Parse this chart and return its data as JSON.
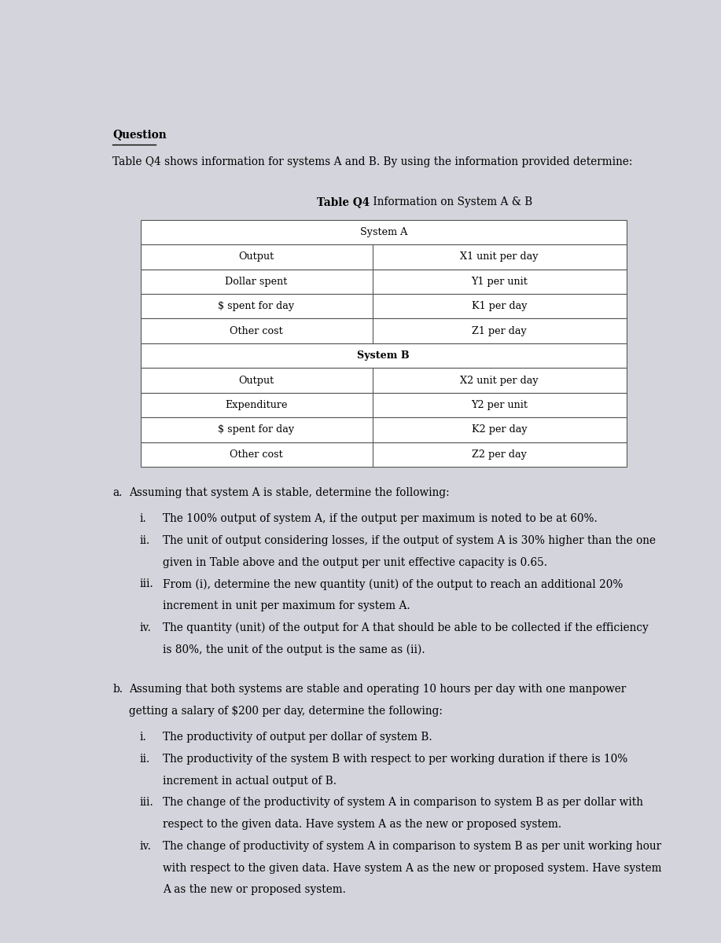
{
  "background_color": "#d4d4dc",
  "title_question": "Question",
  "intro_text": "Table Q4 shows information for systems A and B. By using the information provided determine:",
  "table_title_bold": "Table Q4",
  "table_title_rest": " Information on System A & B",
  "table_system_a_header": "System A",
  "table_system_b_header": "System B",
  "table_rows_a": [
    [
      "Output",
      "X1 unit per day"
    ],
    [
      "Dollar spent",
      "Y1 per unit"
    ],
    [
      "$ spent for day",
      "K1 per day"
    ],
    [
      "Other cost",
      "Z1 per day"
    ]
  ],
  "table_rows_b": [
    [
      "Output",
      "X2 unit per day"
    ],
    [
      "Expenditure",
      "Y2 per unit"
    ],
    [
      "$ spent for day",
      "K2 per day"
    ],
    [
      "Other cost",
      "Z2 per day"
    ]
  ],
  "section_a_label": "a.",
  "section_a_header": "Assuming that system A is stable, determine the following:",
  "section_a_items": [
    [
      "i.",
      "The 100% output of system A, if the output per maximum is noted to be at 60%."
    ],
    [
      "ii.",
      "The unit of output considering losses, if the output of system A is 30% higher than the one\ngiven in Table above and the output per unit effective capacity is 0.65."
    ],
    [
      "iii.",
      "From (i), determine the new quantity (unit) of the output to reach an additional 20%\nincrement in unit per maximum for system A."
    ],
    [
      "iv.",
      "The quantity (unit) of the output for A that should be able to be collected if the efficiency\nis 80%, the unit of the output is the same as (ii)."
    ]
  ],
  "section_b_label": "b.",
  "section_b_line1": "Assuming that both systems are stable and operating 10 hours per day with one manpower",
  "section_b_line2": "getting a salary of $200 per day, determine the following:",
  "section_b_items": [
    [
      "i.",
      "The productivity of output per dollar of system B."
    ],
    [
      "ii.",
      "The productivity of the system B with respect to per working duration if there is 10%\nincrement in actual output of B."
    ],
    [
      "iii.",
      "The change of the productivity of system A in comparison to system B as per dollar with\nrespect to the given data. Have system A as the new or proposed system."
    ],
    [
      "iv.",
      "The change of productivity of system A in comparison to system B as per unit working hour\nwith respect to the given data. Have system A as the new or proposed system. Have system\nA as the new or proposed system."
    ]
  ]
}
